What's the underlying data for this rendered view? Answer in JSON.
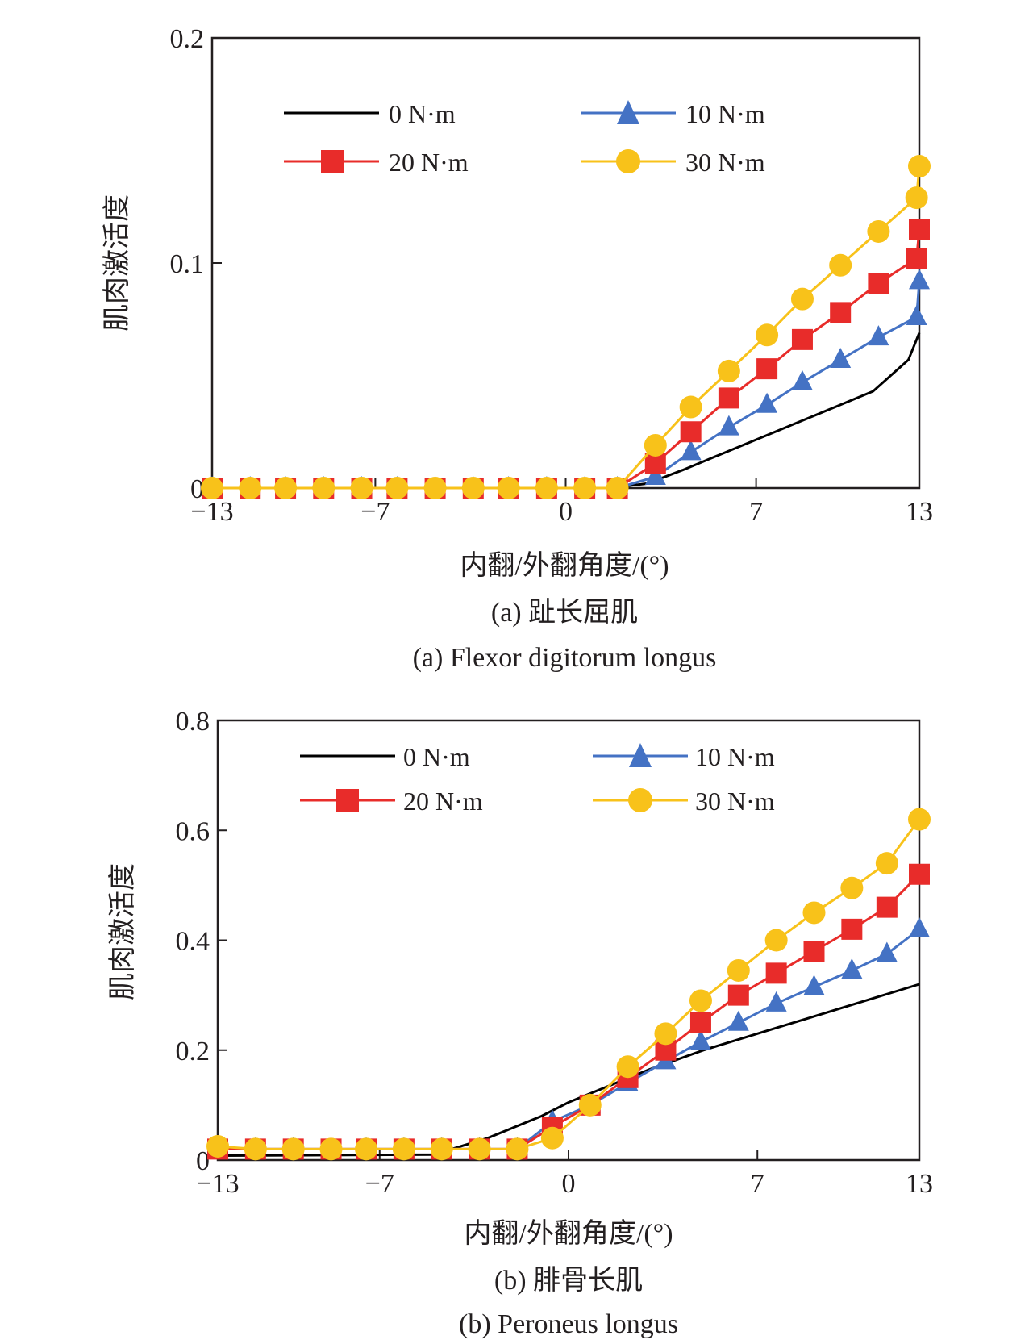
{
  "chart_data": [
    {
      "type": "line",
      "caption_zh": "(a) 趾长屈肌",
      "caption_en": "(a) Flexor digitorum longus",
      "xlabel": "内翻/外翻角度/(°)",
      "ylabel": "肌肉激活度",
      "xlim": [
        -13,
        13
      ],
      "ylim": [
        0,
        0.2
      ],
      "xticks": [
        -13,
        -7,
        0,
        7,
        13
      ],
      "xtick_labels": [
        "−13",
        "−7",
        "0",
        "7",
        "13"
      ],
      "yticks": [
        0,
        0.1,
        0.2
      ],
      "ytick_labels": [
        "0",
        "0.1",
        "0.2"
      ],
      "legend_position": "top",
      "x": [
        -13,
        -11.6,
        -10.3,
        -8.9,
        -7.5,
        -6.2,
        -4.8,
        -3.4,
        -2.1,
        -0.7,
        0.7,
        1.9,
        3.3,
        4.6,
        6.0,
        7.4,
        8.7,
        10.1,
        11.5,
        12.9
      ],
      "series": [
        {
          "name": "0 N·m",
          "color": "#000000",
          "marker": "none",
          "x": [
            -13,
            1.6,
            3.0,
            4.3,
            5.7,
            7.1,
            8.5,
            9.9,
            11.3,
            12.6,
            14.0
          ],
          "values": [
            0,
            0,
            0.002,
            0.008,
            0.015,
            0.022,
            0.029,
            0.036,
            0.043,
            0.057,
            0.069
          ]
        },
        {
          "name": "10 N·m",
          "color": "#4472c4",
          "marker": "triangle",
          "x": [
            -13,
            -11.6,
            -10.3,
            -8.9,
            -7.5,
            -6.2,
            -4.8,
            -3.4,
            -2.1,
            -0.7,
            0.7,
            1.9,
            3.3,
            4.6,
            6.0,
            7.4,
            8.7,
            10.1,
            11.5,
            12.9,
            14.0
          ],
          "values": [
            0,
            0,
            0,
            0,
            0,
            0,
            0,
            0,
            0,
            0,
            0,
            0,
            0.005,
            0.016,
            0.027,
            0.037,
            0.047,
            0.057,
            0.067,
            0.076,
            0.092
          ]
        },
        {
          "name": "20 N·m",
          "color": "#e82c2a",
          "marker": "square",
          "x": [
            -13,
            -11.6,
            -10.3,
            -8.9,
            -7.5,
            -6.2,
            -4.8,
            -3.4,
            -2.1,
            -0.7,
            0.7,
            1.9,
            3.3,
            4.6,
            6.0,
            7.4,
            8.7,
            10.1,
            11.5,
            12.9,
            14.0
          ],
          "values": [
            0,
            0,
            0,
            0,
            0,
            0,
            0,
            0,
            0,
            0,
            0,
            0,
            0.011,
            0.025,
            0.04,
            0.053,
            0.066,
            0.078,
            0.091,
            0.102,
            0.115
          ]
        },
        {
          "name": "30 N·m",
          "color": "#f8c21a",
          "marker": "circle",
          "x": [
            -13,
            -11.6,
            -10.3,
            -8.9,
            -7.5,
            -6.2,
            -4.8,
            -3.4,
            -2.1,
            -0.7,
            0.7,
            1.9,
            3.3,
            4.6,
            6.0,
            7.4,
            8.7,
            10.1,
            11.5,
            12.9,
            14.0
          ],
          "values": [
            0,
            0,
            0,
            0,
            0,
            0,
            0,
            0,
            0,
            0,
            0,
            0,
            0.019,
            0.036,
            0.052,
            0.068,
            0.084,
            0.099,
            0.114,
            0.129,
            0.143
          ]
        }
      ]
    },
    {
      "type": "line",
      "caption_zh": "(b) 腓骨长肌",
      "caption_en": "(b) Peroneus longus",
      "xlabel": "内翻/外翻角度/(°)",
      "ylabel": "肌肉激活度",
      "xlim": [
        -13,
        13
      ],
      "ylim": [
        0,
        0.8
      ],
      "xticks": [
        -13,
        -7,
        0,
        7,
        13
      ],
      "xtick_labels": [
        "−13",
        "−7",
        "0",
        "7",
        "13"
      ],
      "yticks": [
        0,
        0.2,
        0.4,
        0.6,
        0.8
      ],
      "ytick_labels": [
        "0",
        "0.2",
        "0.4",
        "0.6",
        "0.8"
      ],
      "legend_position": "top",
      "series": [
        {
          "name": "0 N·m",
          "color": "#000000",
          "marker": "none",
          "x": [
            -13,
            -5.0,
            -3.0,
            -1.0,
            0,
            1.5,
            3.0,
            5.0,
            7.0,
            9.0,
            11.0,
            13.0
          ],
          "values": [
            0.008,
            0.01,
            0.04,
            0.08,
            0.105,
            0.135,
            0.165,
            0.2,
            0.23,
            0.26,
            0.29,
            0.32
          ]
        },
        {
          "name": "10 N·m",
          "color": "#4472c4",
          "marker": "triangle",
          "x": [
            -13,
            -11.6,
            -10.2,
            -8.8,
            -7.5,
            -6.1,
            -4.7,
            -3.3,
            -1.9,
            -0.6,
            0.8,
            2.2,
            3.6,
            4.9,
            6.3,
            7.7,
            9.1,
            10.5,
            11.8,
            13.2
          ],
          "values": [
            0.02,
            0.02,
            0.02,
            0.02,
            0.02,
            0.02,
            0.02,
            0.02,
            0.02,
            0.07,
            0.1,
            0.14,
            0.18,
            0.215,
            0.25,
            0.285,
            0.315,
            0.345,
            0.375,
            0.42
          ]
        },
        {
          "name": "20 N·m",
          "color": "#e82c2a",
          "marker": "square",
          "x": [
            -13,
            -11.6,
            -10.2,
            -8.8,
            -7.5,
            -6.1,
            -4.7,
            -3.3,
            -1.9,
            -0.6,
            0.8,
            2.2,
            3.6,
            4.9,
            6.3,
            7.7,
            9.1,
            10.5,
            11.8,
            13.2
          ],
          "values": [
            0.02,
            0.02,
            0.02,
            0.02,
            0.02,
            0.02,
            0.02,
            0.02,
            0.02,
            0.06,
            0.1,
            0.15,
            0.2,
            0.25,
            0.3,
            0.34,
            0.38,
            0.42,
            0.46,
            0.52
          ]
        },
        {
          "name": "30 N·m",
          "color": "#f8c21a",
          "marker": "circle",
          "x": [
            -13,
            -11.6,
            -10.2,
            -8.8,
            -7.5,
            -6.1,
            -4.7,
            -3.3,
            -1.9,
            -0.6,
            0.8,
            2.2,
            3.6,
            4.9,
            6.3,
            7.7,
            9.1,
            10.5,
            11.8,
            13.2
          ],
          "values": [
            0.025,
            0.02,
            0.02,
            0.02,
            0.02,
            0.02,
            0.02,
            0.02,
            0.02,
            0.04,
            0.1,
            0.17,
            0.23,
            0.29,
            0.345,
            0.4,
            0.45,
            0.495,
            0.54,
            0.62
          ]
        }
      ]
    }
  ]
}
